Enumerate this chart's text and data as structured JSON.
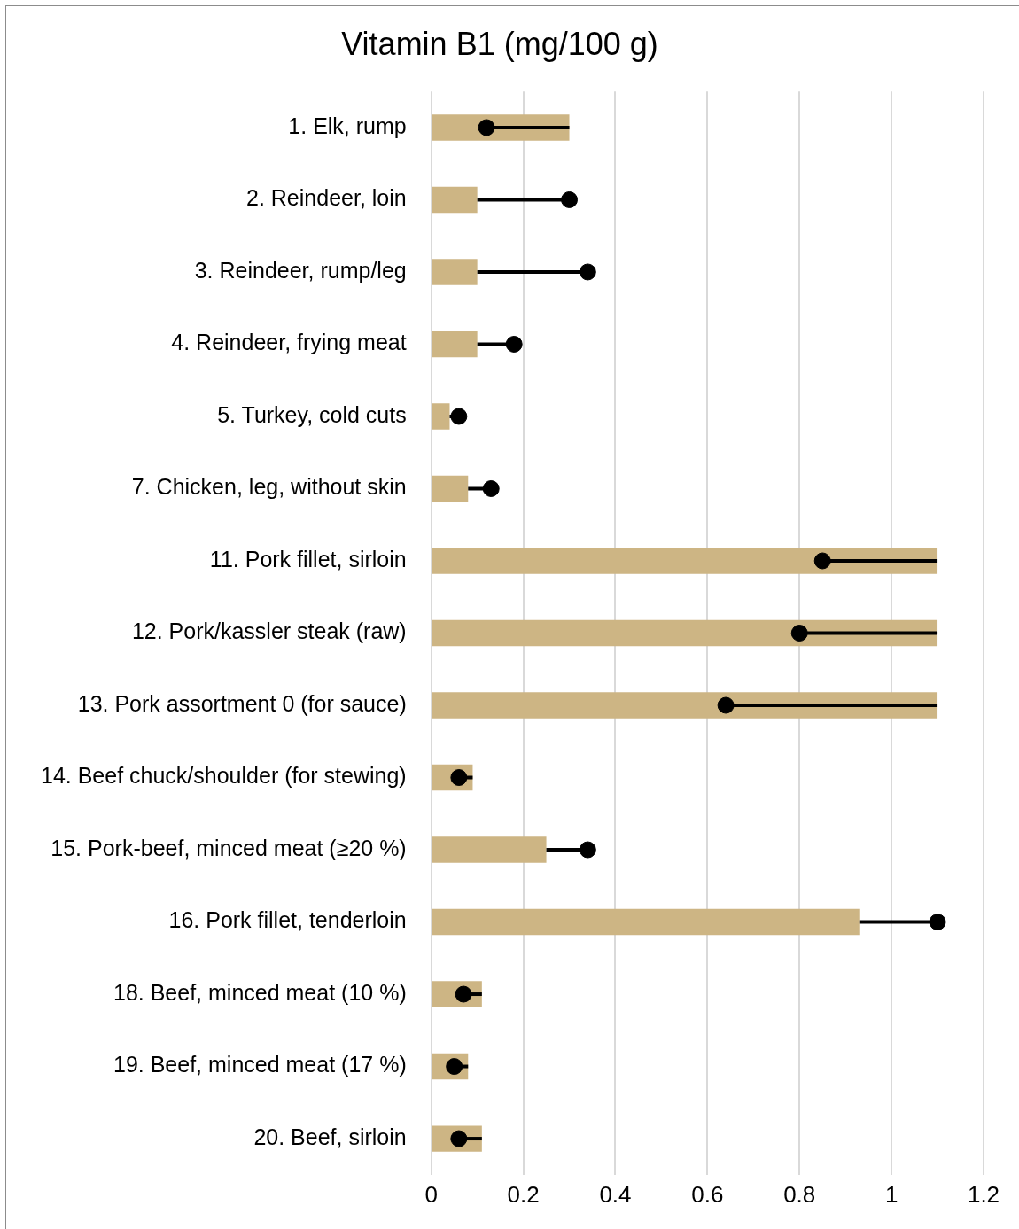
{
  "chart_data": {
    "type": "bar",
    "title": "Vitamin B1 (mg/100 g)",
    "orientation": "horizontal",
    "categories": [
      "1. Elk, rump",
      "2. Reindeer, loin",
      "3. Reindeer, rump/leg",
      "4. Reindeer, frying meat",
      "5. Turkey, cold cuts",
      "7. Chicken, leg, without skin",
      "11. Pork fillet, sirloin",
      "12. Pork/kassler steak (raw)",
      "13. Pork assortment 0 (for sauce)",
      "14. Beef chuck/shoulder (for stewing)",
      "15. Pork-beef, minced meat (≥20 %)",
      "16. Pork fillet, tenderloin",
      "18. Beef, minced meat (10 %)",
      "19. Beef, minced meat (17 %)",
      "20. Beef, sirloin"
    ],
    "series": [
      {
        "color": "#cdb584",
        "values": [
          0.3,
          0.1,
          0.1,
          0.1,
          0.04,
          0.08,
          1.1,
          1.1,
          1.1,
          0.09,
          0.25,
          0.93,
          0.11,
          0.08,
          0.11
        ]
      },
      {
        "type": "scatter",
        "color": "#000000",
        "marker": "circle",
        "values": [
          0.12,
          0.3,
          0.34,
          0.18,
          0.06,
          0.13,
          0.85,
          0.8,
          0.64,
          0.06,
          0.34,
          1.1,
          0.07,
          0.05,
          0.06
        ],
        "errors": [
          [
            0.12,
            0.3
          ],
          [
            0.1,
            0.3
          ],
          [
            0.1,
            0.34
          ],
          [
            0.1,
            0.18
          ],
          [
            0.04,
            0.06
          ],
          [
            0.08,
            0.13
          ],
          [
            0.85,
            1.1
          ],
          [
            0.8,
            1.1
          ],
          [
            0.64,
            1.1
          ],
          [
            0.06,
            0.09
          ],
          [
            0.25,
            0.34
          ],
          [
            0.93,
            1.1
          ],
          [
            0.07,
            0.11
          ],
          [
            0.05,
            0.08
          ],
          [
            0.06,
            0.11
          ]
        ]
      }
    ],
    "xlim": [
      0,
      1.2
    ],
    "xticks": [
      0,
      0.2,
      0.4,
      0.6,
      0.8,
      1,
      1.2
    ],
    "grid": "x",
    "legend": false
  }
}
